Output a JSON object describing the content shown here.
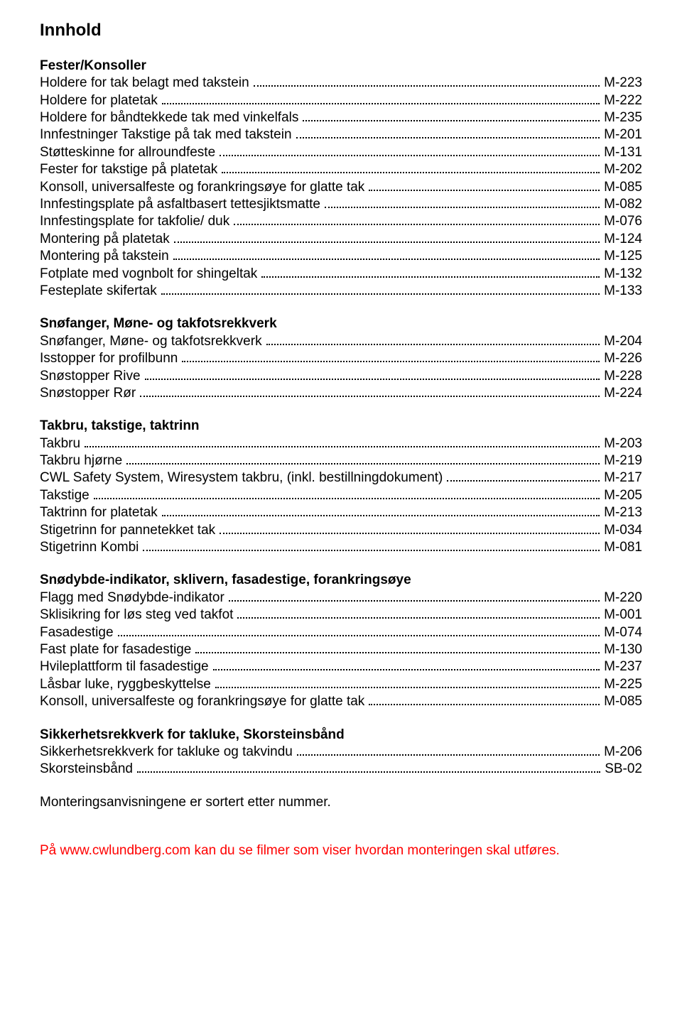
{
  "title": "Innhold",
  "sections": [
    {
      "heading": "Fester/Konsoller",
      "items": [
        {
          "label": "Holdere for tak belagt med takstein",
          "code": "M-223"
        },
        {
          "label": "Holdere for platetak",
          "code": "M-222"
        },
        {
          "label": "Holdere for båndtekkede tak med vinkelfals",
          "code": "M-235"
        },
        {
          "label": "Innfestninger Takstige på tak med takstein",
          "code": "M-201"
        },
        {
          "label": "Støtteskinne for allroundfeste",
          "code": "M-131"
        },
        {
          "label": "Fester for takstige på platetak",
          "code": "M-202"
        },
        {
          "label": "Konsoll, universalfeste og forankringsøye for glatte tak",
          "code": "M-085"
        },
        {
          "label": "Innfestingsplate på asfaltbasert tettesjiktsmatte",
          "code": "M-082"
        },
        {
          "label": "Innfestingsplate for takfolie/ duk",
          "code": "M-076"
        },
        {
          "label": "Montering på platetak",
          "code": "M-124"
        },
        {
          "label": "Montering på takstein",
          "code": "M-125"
        },
        {
          "label": "Fotplate med vognbolt for shingeltak",
          "code": "M-132"
        },
        {
          "label": "Festeplate skifertak",
          "code": "M-133"
        }
      ]
    },
    {
      "heading": "Snøfanger, Møne- og takfotsrekkverk",
      "items": [
        {
          "label": "Snøfanger, Møne- og takfotsrekkverk",
          "code": "M-204"
        },
        {
          "label": "Isstopper for profilbunn",
          "code": "M-226"
        },
        {
          "label": "Snøstopper Rive",
          "code": "M-228"
        },
        {
          "label": "Snøstopper Rør",
          "code": "M-224"
        }
      ]
    },
    {
      "heading": "Takbru, takstige, taktrinn",
      "items": [
        {
          "label": "Takbru",
          "code": "M-203"
        },
        {
          "label": "Takbru hjørne",
          "code": "M-219"
        },
        {
          "label": "CWL Safety System, Wiresystem takbru, (inkl. bestillningdokument)",
          "code": "M-217"
        },
        {
          "label": "Takstige",
          "code": "M-205"
        },
        {
          "label": "Taktrinn for platetak",
          "code": "M-213"
        },
        {
          "label": "Stigetrinn for pannetekket tak",
          "code": "M-034"
        },
        {
          "label": "Stigetrinn Kombi",
          "code": "M-081"
        }
      ]
    },
    {
      "heading": "Snødybde-indikator, sklivern, fasadestige, forankringsøye",
      "items": [
        {
          "label": "Flagg med Snødybde-indikator",
          "code": "M-220"
        },
        {
          "label": "Sklisikring for løs steg ved takfot",
          "code": "M-001"
        },
        {
          "label": "Fasadestige",
          "code": "M-074"
        },
        {
          "label": "Fast plate for fasadestige",
          "code": "M-130"
        },
        {
          "label": "Hvileplattform til fasadestige",
          "code": "M-237"
        },
        {
          "label": "Låsbar luke, ryggbeskyttelse",
          "code": "M-225"
        },
        {
          "label": "Konsoll, universalfeste og forankringsøye for glatte tak",
          "code": "M-085"
        }
      ]
    },
    {
      "heading": "Sikkerhetsrekkverk for takluke, Skorsteinsbånd",
      "items": [
        {
          "label": "Sikkerhetsrekkverk for takluke og takvindu",
          "code": "M-206"
        },
        {
          "label": "Skorsteinsbånd",
          "code": "SB-02"
        }
      ]
    }
  ],
  "note": "Monteringsanvisningene er sortert etter nummer.",
  "footer": "På www.cwlundberg.com kan du se filmer som viser hvordan monteringen skal utføres."
}
